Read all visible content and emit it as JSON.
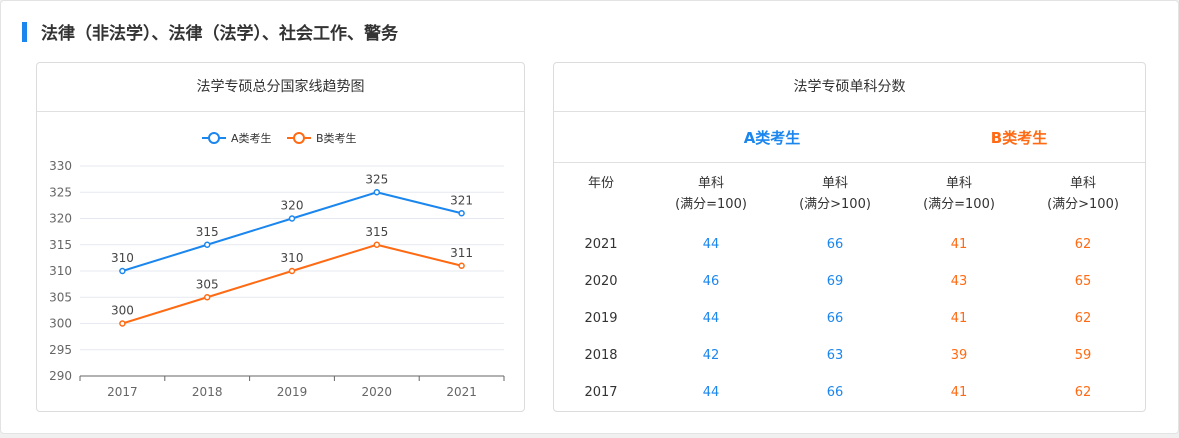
{
  "section_title": "法律（非法学）、法律（法学）、社会工作、警务",
  "colors": {
    "a": "#1a86ee",
    "b": "#ff6a13"
  },
  "chart_data": {
    "type": "line",
    "title": "法学专硕总分国家线趋势图",
    "categories": [
      "2017",
      "2018",
      "2019",
      "2020",
      "2021"
    ],
    "series": [
      {
        "name": "A类考生",
        "values": [
          310,
          315,
          320,
          325,
          321
        ],
        "color": "#1a86ee"
      },
      {
        "name": "B类考生",
        "values": [
          300,
          305,
          310,
          315,
          311
        ],
        "color": "#ff6a13"
      }
    ],
    "yticks": [
      "290",
      "295",
      "300",
      "305",
      "310",
      "315",
      "320",
      "325",
      "330"
    ],
    "ylim": [
      290,
      330
    ],
    "grid": true,
    "legend": "top-center",
    "xlabel": "",
    "ylabel": ""
  },
  "table": {
    "title": "法学专硕单科分数",
    "group_a": "A类考生",
    "group_b": "B类考生",
    "header_year": "年份",
    "headers": [
      [
        "单科",
        "(满分=100)"
      ],
      [
        "单科",
        "(满分>100)"
      ],
      [
        "单科",
        "(满分=100)"
      ],
      [
        "单科",
        "(满分>100)"
      ]
    ],
    "rows": [
      [
        "2021",
        "44",
        "66",
        "41",
        "62"
      ],
      [
        "2020",
        "46",
        "69",
        "43",
        "65"
      ],
      [
        "2019",
        "44",
        "66",
        "41",
        "62"
      ],
      [
        "2018",
        "42",
        "63",
        "39",
        "59"
      ],
      [
        "2017",
        "44",
        "66",
        "41",
        "62"
      ]
    ]
  }
}
